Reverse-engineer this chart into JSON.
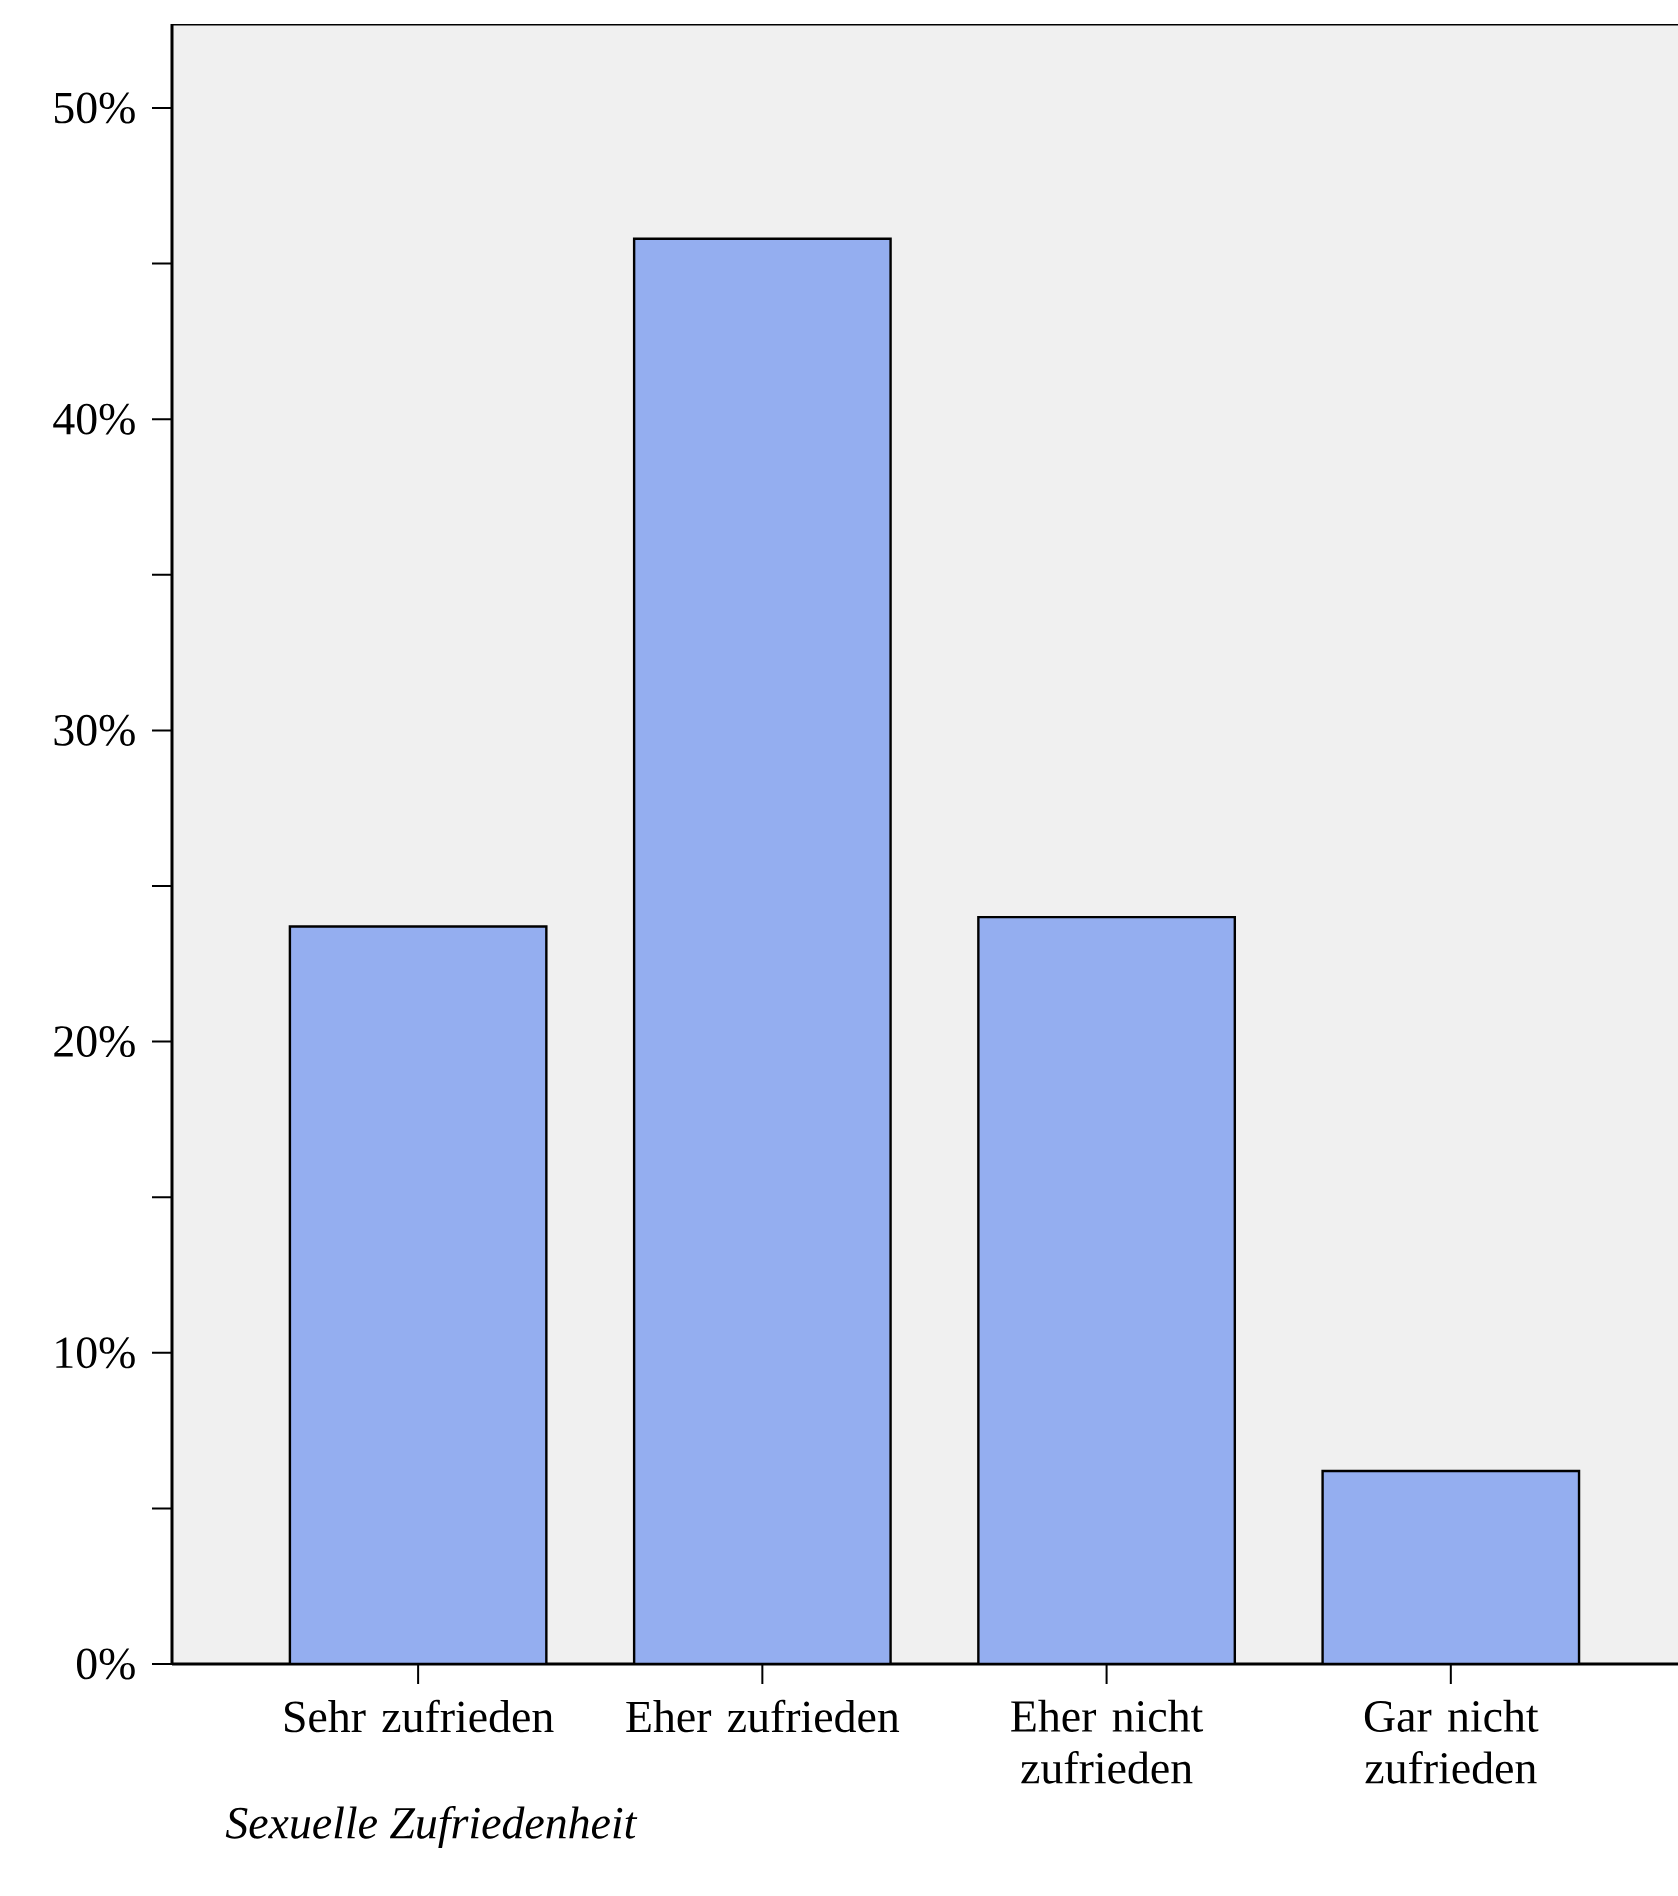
{
  "chart_data": {
    "type": "bar",
    "xlabel": "Sexuelle Zufriedenheit",
    "categories": [
      "Sehr zufrieden",
      "Eher zufrieden",
      "Eher nicht zufrieden",
      "Gar nicht zufrieden"
    ],
    "values": [
      23.7,
      45.8,
      24.0,
      6.2
    ],
    "color": "#94aef0",
    "ylim": [
      0,
      52.7
    ],
    "yticks": [
      {
        "value": 0,
        "label": "0%"
      },
      {
        "value": 5,
        "label": null
      },
      {
        "value": 10,
        "label": "10%"
      },
      {
        "value": 15,
        "label": null
      },
      {
        "value": 20,
        "label": "20%"
      },
      {
        "value": 25,
        "label": null
      },
      {
        "value": 30,
        "label": "30%"
      },
      {
        "value": 35,
        "label": null
      },
      {
        "value": 40,
        "label": "40%"
      },
      {
        "value": 45,
        "label": null
      },
      {
        "value": 50,
        "label": "50%"
      }
    ]
  }
}
